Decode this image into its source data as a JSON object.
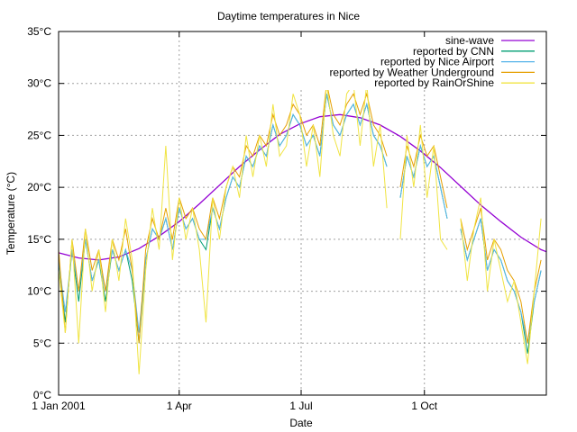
{
  "chart_data": {
    "type": "line",
    "title": "Daytime temperatures in Nice",
    "xlabel": "Date",
    "ylabel": "Temperature (°C)",
    "xlim": [
      "2001-01-01",
      "2001-12-31"
    ],
    "ylim": [
      0,
      35
    ],
    "grid": true,
    "legend_position": "top-right",
    "x_ticks": [
      {
        "date": "2001-01-01",
        "label": "1 Jan 2001"
      },
      {
        "date": "2001-04-01",
        "label": "1 Apr"
      },
      {
        "date": "2001-07-01",
        "label": "1 Jul"
      },
      {
        "date": "2001-10-01",
        "label": "1 Oct"
      }
    ],
    "y_ticks": [
      {
        "value": 0,
        "label": "0°C"
      },
      {
        "value": 5,
        "label": "5°C"
      },
      {
        "value": 10,
        "label": "10°C"
      },
      {
        "value": 15,
        "label": "15°C"
      },
      {
        "value": 20,
        "label": "20°C"
      },
      {
        "value": 25,
        "label": "25°C"
      },
      {
        "value": 30,
        "label": "30°C"
      },
      {
        "value": 35,
        "label": "35°C"
      }
    ],
    "sine_wave": {
      "name": "sine-wave",
      "color": "#9400d3",
      "dates": [
        "2001-01-01",
        "2001-01-16",
        "2001-01-31",
        "2001-02-15",
        "2001-03-02",
        "2001-03-17",
        "2001-04-01",
        "2001-04-16",
        "2001-05-01",
        "2001-05-16",
        "2001-05-31",
        "2001-06-15",
        "2001-06-30",
        "2001-07-15",
        "2001-07-30",
        "2001-08-14",
        "2001-08-29",
        "2001-09-13",
        "2001-09-28",
        "2001-10-13",
        "2001-10-28",
        "2001-11-12",
        "2001-11-27",
        "2001-12-12",
        "2001-12-27",
        "2001-12-31"
      ],
      "values": [
        13.7,
        13.2,
        13.0,
        13.3,
        14.1,
        15.3,
        16.7,
        18.4,
        20.2,
        22.0,
        23.6,
        25.1,
        26.1,
        26.8,
        27.0,
        26.7,
        26.0,
        24.9,
        23.5,
        21.9,
        20.1,
        18.3,
        16.7,
        15.2,
        14.0,
        13.8
      ]
    },
    "dates": [
      "2001-01-01",
      "2001-01-06",
      "2001-01-11",
      "2001-01-16",
      "2001-01-21",
      "2001-01-26",
      "2001-01-31",
      "2001-02-05",
      "2001-02-10",
      "2001-02-15",
      "2001-02-20",
      "2001-02-25",
      "2001-03-02",
      "2001-03-07",
      "2001-03-12",
      "2001-03-17",
      "2001-03-22",
      "2001-03-27",
      "2001-04-01",
      "2001-04-06",
      "2001-04-11",
      "2001-04-16",
      "2001-04-21",
      "2001-04-26",
      "2001-05-01",
      "2001-05-06",
      "2001-05-11",
      "2001-05-16",
      "2001-05-21",
      "2001-05-26",
      "2001-05-31",
      "2001-06-05",
      "2001-06-10",
      "2001-06-15",
      "2001-06-20",
      "2001-06-25",
      "2001-06-30",
      "2001-07-05",
      "2001-07-10",
      "2001-07-15",
      "2001-07-20",
      "2001-07-25",
      "2001-07-30",
      "2001-08-04",
      "2001-08-09",
      "2001-08-14",
      "2001-08-19",
      "2001-08-24",
      "2001-08-29",
      "2001-09-03",
      "2001-09-08",
      "2001-09-13",
      "2001-09-18",
      "2001-09-23",
      "2001-09-28",
      "2001-10-03",
      "2001-10-08",
      "2001-10-13",
      "2001-10-18",
      "2001-10-23",
      "2001-10-28",
      "2001-11-02",
      "2001-11-07",
      "2001-11-12",
      "2001-11-17",
      "2001-11-22",
      "2001-11-27",
      "2001-12-02",
      "2001-12-07",
      "2001-12-12",
      "2001-12-17",
      "2001-12-22",
      "2001-12-27"
    ],
    "series": [
      {
        "name": "reported by CNN",
        "color": "#009e73",
        "values": [
          13,
          7,
          14,
          9,
          15,
          11,
          13,
          9,
          14,
          12,
          14,
          11,
          5,
          13,
          16,
          15,
          17,
          14,
          18,
          16,
          17,
          15,
          14,
          18,
          16,
          19,
          21,
          20,
          23,
          22,
          24,
          23,
          26,
          24,
          25,
          27,
          26,
          24,
          25,
          23,
          29,
          26,
          25,
          27,
          28,
          26,
          28,
          25,
          24,
          22,
          null,
          19,
          23,
          21,
          24,
          22,
          23,
          20,
          17,
          null,
          16,
          13,
          15,
          17,
          12,
          14,
          13,
          11,
          10,
          8,
          4,
          9,
          12
        ]
      },
      {
        "name": "reported by Nice Airport",
        "color": "#56b4e9",
        "values": [
          13,
          8,
          14,
          10,
          15,
          11,
          13,
          10,
          14,
          12,
          14,
          12,
          6,
          13,
          16,
          15,
          17,
          14,
          18,
          16,
          17,
          15,
          15,
          18,
          16,
          19,
          21,
          20,
          23,
          22,
          24,
          23,
          26,
          24,
          25,
          27,
          26,
          24,
          25,
          23,
          29,
          26,
          25,
          27,
          28,
          26,
          28,
          25,
          24,
          22,
          null,
          19,
          23,
          21,
          24,
          22,
          23,
          20,
          17,
          null,
          16,
          13,
          15,
          17,
          12,
          14,
          13,
          11,
          10,
          8,
          5,
          9,
          12
        ]
      },
      {
        "name": "reported by Weather Underground",
        "color": "#e69f00",
        "values": [
          14,
          6,
          15,
          10,
          16,
          12,
          14,
          10,
          15,
          13,
          16,
          12,
          5,
          14,
          17,
          15,
          18,
          15,
          19,
          17,
          18,
          16,
          15,
          19,
          17,
          20,
          22,
          21,
          24,
          23,
          25,
          24,
          27,
          25,
          26,
          28,
          27,
          25,
          26,
          24,
          30,
          27,
          26,
          28,
          29,
          27,
          29,
          26,
          25,
          23,
          null,
          20,
          24,
          22,
          25,
          23,
          24,
          21,
          18,
          null,
          17,
          14,
          16,
          18,
          13,
          15,
          14,
          12,
          11,
          9,
          5,
          10,
          13
        ]
      },
      {
        "name": "reported by RainOrShine",
        "color": "#f0e442",
        "values": [
          12,
          6,
          15,
          5,
          16,
          10,
          14,
          8,
          15,
          11,
          17,
          13,
          2,
          12,
          18,
          14,
          24,
          13,
          19,
          15,
          18,
          14,
          7,
          19,
          15,
          20,
          22,
          19,
          25,
          21,
          25,
          22,
          28,
          23,
          24,
          29,
          27,
          22,
          26,
          21,
          30,
          25,
          23,
          29,
          30,
          24,
          30,
          22,
          26,
          18,
          null,
          15,
          25,
          20,
          26,
          19,
          24,
          15,
          14,
          null,
          17,
          11,
          16,
          19,
          10,
          15,
          12,
          9,
          11,
          7,
          3,
          10,
          17
        ]
      }
    ]
  }
}
